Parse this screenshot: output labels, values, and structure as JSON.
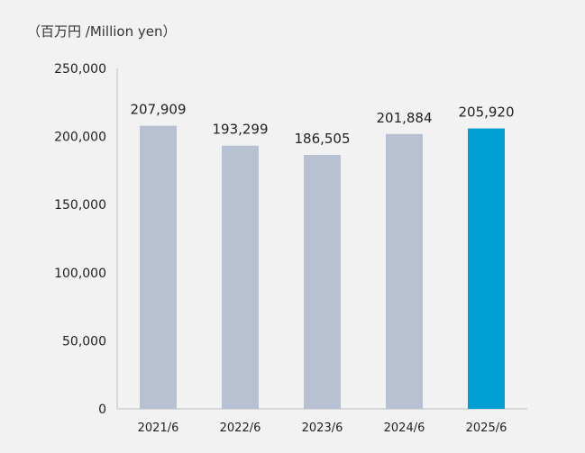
{
  "chart_data": {
    "type": "bar",
    "unit_label": "（百万円 /Million yen）",
    "categories": [
      "2021/6",
      "2022/6",
      "2023/6",
      "2024/6",
      "2025/6"
    ],
    "values": [
      207909,
      193299,
      186505,
      201884,
      205920
    ],
    "data_labels": [
      "207,909",
      "193,299",
      "186,505",
      "201,884",
      "205,920"
    ],
    "ylim": [
      0,
      250000
    ],
    "yticks": [
      0,
      50000,
      100000,
      150000,
      200000,
      250000
    ],
    "ytick_labels": [
      "0",
      "50,000",
      "100,000",
      "150,000",
      "200,000",
      "250,000"
    ],
    "grid": false,
    "colors": {
      "bar_default": "#b8c1d1",
      "bar_highlight": "#009fd3",
      "background": "#f2f2f2"
    },
    "highlight_index": 4
  }
}
